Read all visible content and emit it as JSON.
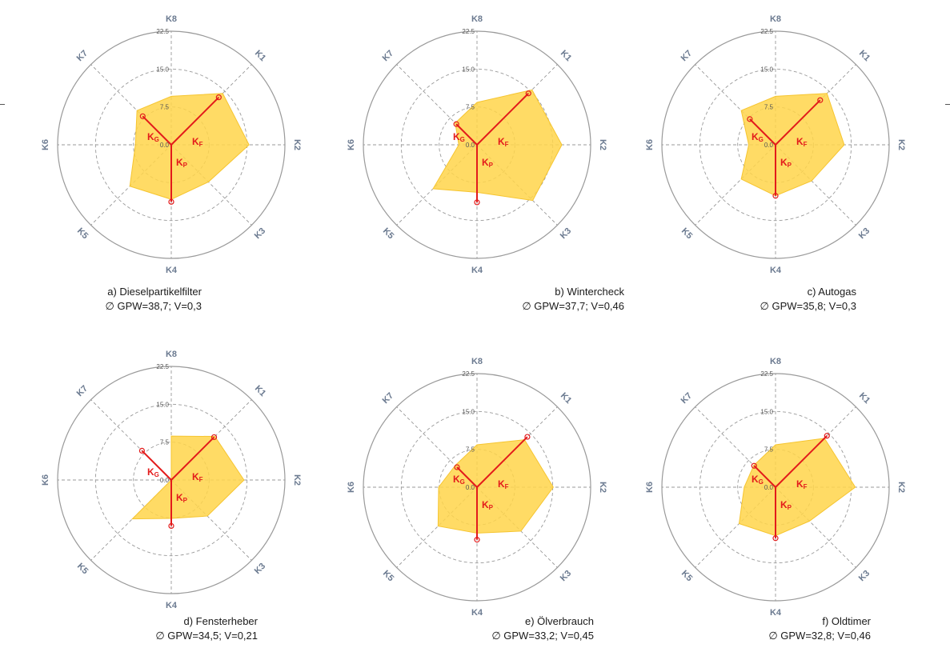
{
  "axes": [
    "K1",
    "K2",
    "K3",
    "K4",
    "K5",
    "K6",
    "K7",
    "K8"
  ],
  "radial_ticks": [
    "0.0",
    "7.5",
    "15.0",
    "22.5"
  ],
  "rmax": 22.5,
  "colors": {
    "fill": "#ffd54a",
    "fill_stroke": "#f6c530",
    "kline": "#e31b1b",
    "grid": "#9a9a9a",
    "axis_label": "#6b7a90"
  },
  "kvector_labels": {
    "F": "F",
    "G": "G",
    "P": "P",
    "prefix": "K"
  },
  "chart_data": [
    {
      "type": "radar",
      "caption_title": "a) Dieselpartikelfilter",
      "caption_stats": "∅ GPW=38,7;  V=0,3",
      "values": [
        14.4,
        15.4,
        10.4,
        10.8,
        11.6,
        7.1,
        9.6,
        9.6
      ],
      "k_F": {
        "angle": 45,
        "value": 13.3
      },
      "k_G": {
        "angle": 315,
        "value": 8.0
      },
      "k_P": {
        "angle": 180,
        "value": 11.3
      }
    },
    {
      "type": "radar",
      "caption_title": "b) Wintercheck",
      "caption_stats": "∅ GPW=37,7;  V=0,46",
      "values": [
        15.4,
        16.8,
        15.6,
        9.4,
        12.3,
        3.6,
        6.1,
        8.4
      ],
      "k_F": {
        "angle": 45,
        "value": 14.4
      },
      "k_G": {
        "angle": 315,
        "value": 5.8
      },
      "k_P": {
        "angle": 180,
        "value": 11.4
      }
    },
    {
      "type": "radar",
      "caption_title": "c) Autogas",
      "caption_stats": "∅ GPW=35,8;  V=0,3",
      "values": [
        14.4,
        13.6,
        10.1,
        10.1,
        9.6,
        5.3,
        9.6,
        9.6
      ],
      "k_F": {
        "angle": 45,
        "value": 12.5
      },
      "k_G": {
        "angle": 315,
        "value": 7.2
      },
      "k_P": {
        "angle": 180,
        "value": 10.1
      }
    },
    {
      "type": "radar",
      "caption_title": "d) Fensterheber",
      "caption_stats": "∅ GPW=34,5;  V=0,21",
      "values": [
        12.2,
        14.4,
        10.1,
        7.6,
        10.9,
        0.0,
        0.0,
        8.7
      ],
      "k_F": {
        "angle": 45,
        "value": 12.0
      },
      "k_G": {
        "angle": 315,
        "value": 8.2
      },
      "k_P": {
        "angle": 180,
        "value": 9.1
      }
    },
    {
      "type": "radar",
      "caption_title": "e) Ölverbrauch",
      "caption_stats": "∅ GPW=33,2;  V=0,45",
      "values": [
        13.3,
        15.1,
        12.3,
        9.1,
        10.9,
        7.6,
        6.1,
        8.4
      ],
      "k_F": {
        "angle": 45,
        "value": 14.1
      },
      "k_G": {
        "angle": 315,
        "value": 5.6
      },
      "k_P": {
        "angle": 180,
        "value": 10.4
      }
    },
    {
      "type": "radar",
      "caption_title": "f) Oldtimer",
      "caption_stats": "∅ GPW=32,8;  V=0,46",
      "values": [
        13.7,
        15.8,
        9.5,
        9.6,
        10.2,
        6.2,
        6.1,
        8.4
      ],
      "k_F": {
        "angle": 45,
        "value": 14.4
      },
      "k_G": {
        "angle": 315,
        "value": 6.0
      },
      "k_P": {
        "angle": 180,
        "value": 10.1
      }
    }
  ]
}
